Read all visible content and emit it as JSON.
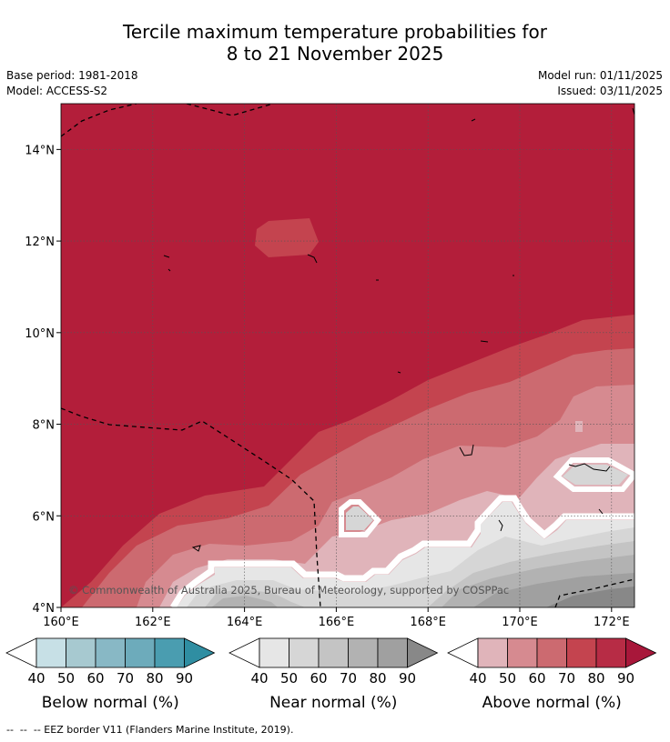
{
  "title": {
    "line1": "Tercile maximum temperature probabilities for",
    "line2": "8 to 21 November 2025"
  },
  "meta": {
    "base_period": "Base period: 1981-2018",
    "model": "Model: ACCESS-S2",
    "model_run": "Model run: 01/11/2025",
    "issued": "Issued: 03/11/2025"
  },
  "map": {
    "lat_ticks": [
      "14°N",
      "12°N",
      "10°N",
      "8°N",
      "6°N",
      "4°N"
    ],
    "lon_ticks": [
      "160°E",
      "162°E",
      "164°E",
      "166°E",
      "168°E",
      "170°E",
      "172°E"
    ],
    "copyright": "© Commonwealth of Australia 2025, Bureau of Meteorology, supported by COSPPac",
    "colors": {
      "above_90": "#b31e3a",
      "above_80": "#c4444f",
      "above_70": "#cc6a70",
      "above_60": "#d68a90",
      "above_50": "#e0b4ba",
      "near_40": "#e6e6e6",
      "near_50": "#d6d6d6",
      "near_60": "#c4c4c4",
      "near_70": "#b2b2b2",
      "near_80": "#a0a0a0",
      "near_90": "#888888"
    }
  },
  "colorbars": [
    {
      "title": "Below normal (%)",
      "labels": [
        "40",
        "50",
        "60",
        "70",
        "80",
        "90"
      ],
      "colors": [
        "#ffffff",
        "#c7e0e6",
        "#a7c9d0",
        "#88b8c5",
        "#6dabbb",
        "#4a9db0",
        "#2f8ea2"
      ]
    },
    {
      "title": "Near normal (%)",
      "labels": [
        "40",
        "50",
        "60",
        "70",
        "80",
        "90"
      ],
      "colors": [
        "#ffffff",
        "#e6e6e6",
        "#d6d6d6",
        "#c4c4c4",
        "#b2b2b2",
        "#a0a0a0",
        "#888888"
      ]
    },
    {
      "title": "Above normal (%)",
      "labels": [
        "40",
        "50",
        "60",
        "70",
        "80",
        "90"
      ],
      "colors": [
        "#ffffff",
        "#e0b4ba",
        "#d68a90",
        "#cc6a70",
        "#c4444f",
        "#b72c45",
        "#a8173a"
      ]
    }
  ],
  "footnote": "--  --  -- EEZ border V11 (Flanders Marine Institute, 2019)."
}
